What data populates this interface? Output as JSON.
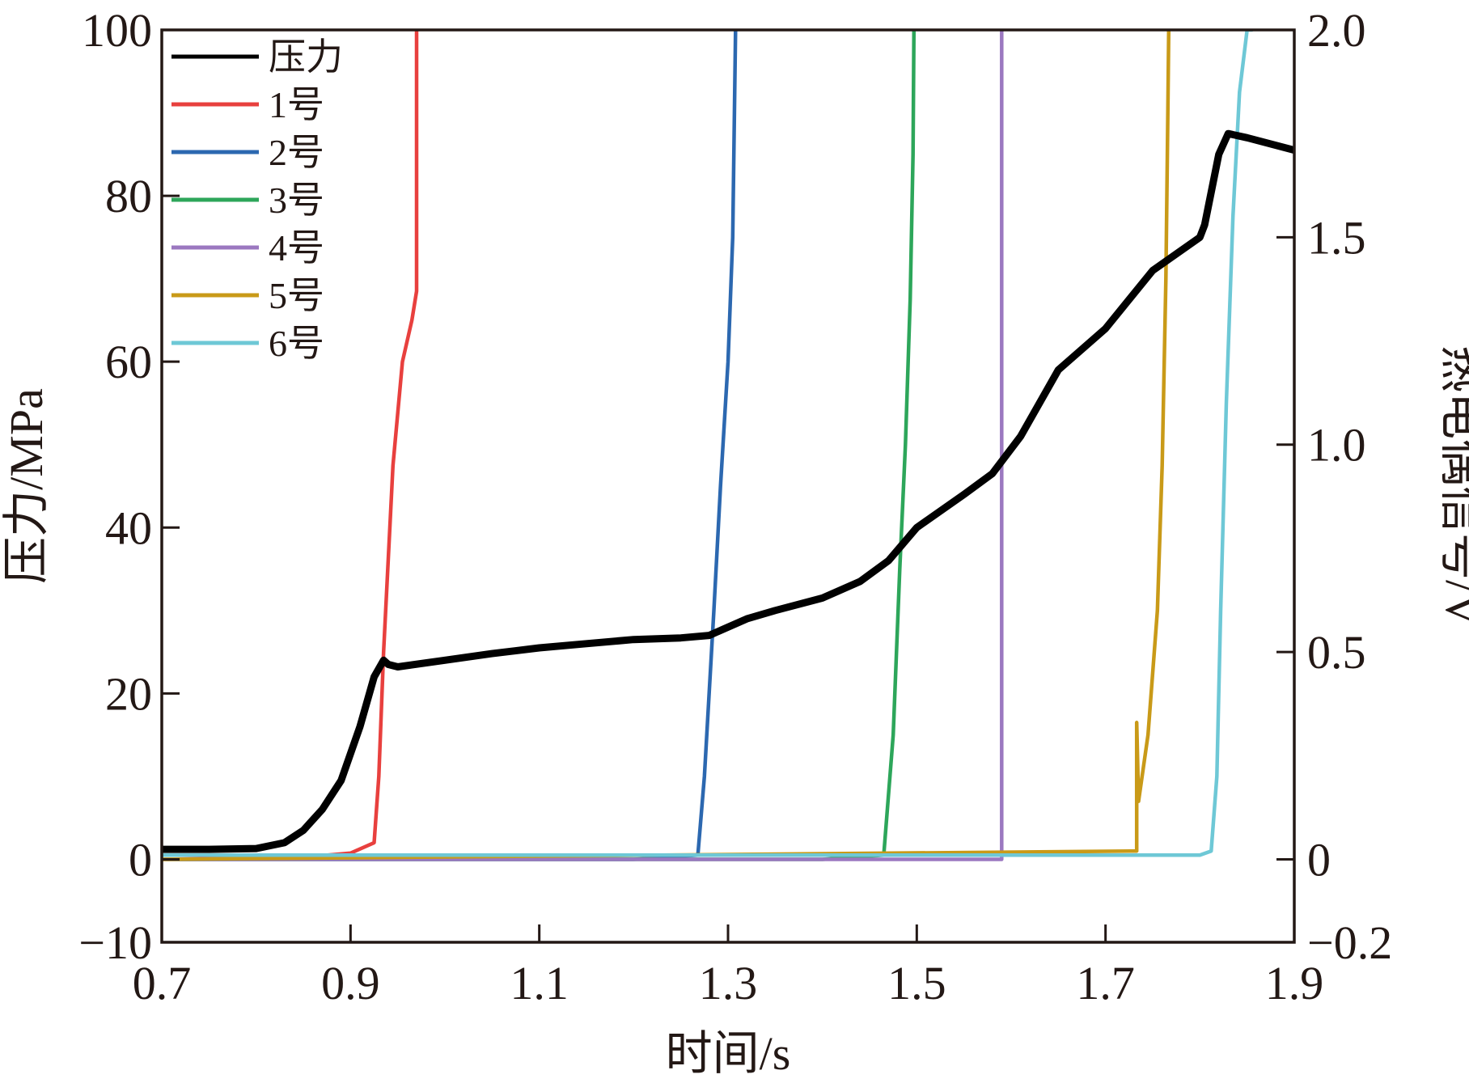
{
  "chart_data": {
    "type": "line",
    "xlabel": "时间/s",
    "ylabel_left": "压力/MPa",
    "ylabel_right": "热电偶信号/V",
    "xlim": [
      0.7,
      1.9
    ],
    "ylim_left": [
      -10,
      100
    ],
    "ylim_right": [
      -0.2,
      2.0
    ],
    "x_ticks": [
      0.7,
      0.9,
      1.1,
      1.3,
      1.5,
      1.7,
      1.9
    ],
    "x_tick_labels": [
      "0.7",
      "0.9",
      "1.1",
      "1.3",
      "1.5",
      "1.7",
      "1.9"
    ],
    "y_left_ticks": [
      -10,
      0,
      20,
      40,
      60,
      80,
      100
    ],
    "y_left_tick_labels": [
      "−10",
      "0",
      "20",
      "40",
      "60",
      "80",
      "100"
    ],
    "y_right_ticks": [
      -0.2,
      0,
      0.5,
      1.0,
      1.5,
      2.0
    ],
    "y_right_tick_labels": [
      "−0.2",
      "0",
      "0.5",
      "1.0",
      "1.5",
      "2.0"
    ],
    "grid": false,
    "legend_position": "top-left",
    "series": [
      {
        "name": "压力",
        "axis": "left",
        "color": "#000000",
        "x": [
          0.7,
          0.75,
          0.8,
          0.83,
          0.85,
          0.87,
          0.89,
          0.91,
          0.925,
          0.935,
          0.94,
          0.95,
          1.0,
          1.05,
          1.1,
          1.15,
          1.2,
          1.25,
          1.28,
          1.32,
          1.35,
          1.4,
          1.44,
          1.47,
          1.5,
          1.55,
          1.58,
          1.61,
          1.65,
          1.7,
          1.75,
          1.8,
          1.805,
          1.82,
          1.83,
          1.85,
          1.9
        ],
        "y": [
          1.2,
          1.2,
          1.3,
          2.0,
          3.5,
          6.0,
          9.5,
          16.0,
          22.0,
          24.0,
          23.5,
          23.2,
          24.0,
          24.8,
          25.5,
          26.0,
          26.5,
          26.7,
          27.0,
          29.0,
          30.0,
          31.5,
          33.5,
          36.0,
          40.0,
          44.0,
          46.5,
          51.0,
          59.0,
          64.0,
          71.0,
          75.0,
          76.5,
          85.0,
          87.5,
          87.0,
          85.5
        ]
      },
      {
        "name": "1号",
        "axis": "right",
        "color": "#e8403e",
        "x": [
          0.7,
          0.85,
          0.9,
          0.925,
          0.93,
          0.935,
          0.945,
          0.955,
          0.965,
          0.97,
          0.97
        ],
        "y": [
          0.0,
          0.005,
          0.015,
          0.04,
          0.2,
          0.5,
          0.95,
          1.2,
          1.3,
          1.37,
          2.0
        ]
      },
      {
        "name": "2号",
        "axis": "right",
        "color": "#2c68b0",
        "x": [
          0.7,
          1.2,
          1.268,
          1.275,
          1.285,
          1.292,
          1.3,
          1.305,
          1.308
        ],
        "y": [
          0.0,
          0.0,
          0.01,
          0.2,
          0.6,
          0.9,
          1.2,
          1.5,
          2.0
        ]
      },
      {
        "name": "3号",
        "axis": "right",
        "color": "#2da65a",
        "x": [
          0.7,
          1.4,
          1.465,
          1.475,
          1.482,
          1.488,
          1.493,
          1.496,
          1.497
        ],
        "y": [
          0.0,
          0.0,
          0.01,
          0.3,
          0.7,
          1.0,
          1.35,
          1.7,
          2.0
        ]
      },
      {
        "name": "4号",
        "axis": "right",
        "color": "#9b78c0",
        "x": [
          0.7,
          1.55,
          1.585,
          1.59,
          1.59
        ],
        "y": [
          0.0,
          0.0,
          0.0,
          0.0,
          2.0
        ]
      },
      {
        "name": "5号",
        "axis": "right",
        "color": "#c99a18",
        "x": [
          0.7,
          1.733,
          1.733,
          1.735,
          1.745,
          1.755,
          1.76,
          1.764,
          1.766,
          1.767
        ],
        "y": [
          0.0,
          0.02,
          0.33,
          0.14,
          0.3,
          0.6,
          0.95,
          1.4,
          1.8,
          2.0
        ]
      },
      {
        "name": "6号",
        "axis": "right",
        "color": "#6ec8d6",
        "x": [
          0.7,
          1.8,
          1.812,
          1.818,
          1.822,
          1.828,
          1.835,
          1.842,
          1.85,
          1.855
        ],
        "y": [
          0.01,
          0.01,
          0.02,
          0.2,
          0.6,
          1.1,
          1.55,
          1.85,
          2.0,
          2.0
        ]
      }
    ]
  }
}
